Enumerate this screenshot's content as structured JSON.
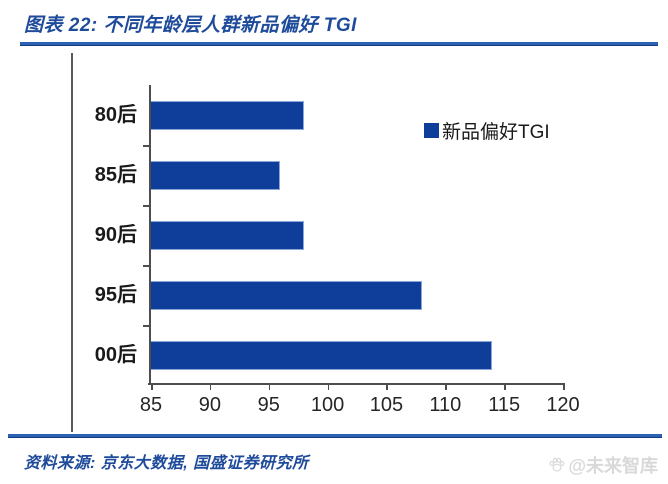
{
  "header": {
    "title": "图表 22:  不同年龄层人群新品偏好 TGI"
  },
  "chart_data": {
    "type": "bar",
    "orientation": "horizontal",
    "title": "不同年龄层人群新品偏好 TGI",
    "categories": [
      "80后",
      "85后",
      "90后",
      "95后",
      "00后"
    ],
    "values": [
      98,
      96,
      98,
      108,
      114
    ],
    "series_name": "新品偏好TGI",
    "xlabel": "",
    "ylabel": "",
    "xlim": [
      85,
      120
    ],
    "x_ticks": [
      85,
      90,
      95,
      100,
      105,
      110,
      115,
      120
    ],
    "grid": false,
    "legend_position": "inside-top-right",
    "bar_color": "#0e3e99"
  },
  "legend": {
    "label": "新品偏好TGI",
    "swatch_color": "#0e3e99"
  },
  "footer": {
    "source": "资料来源: 京东大数据, 国盛证券研究所",
    "watermark": "@未来智库",
    "watermark_icon": "paw-icon"
  },
  "colors": {
    "accent_blue": "#1f4b9b",
    "rule_blue": "#2b62b4",
    "bar_blue": "#0e3e99",
    "axis_gray": "#4d4d4d",
    "text_dark": "#1a1a1a",
    "watermark_gray": "#d9d9d9"
  }
}
